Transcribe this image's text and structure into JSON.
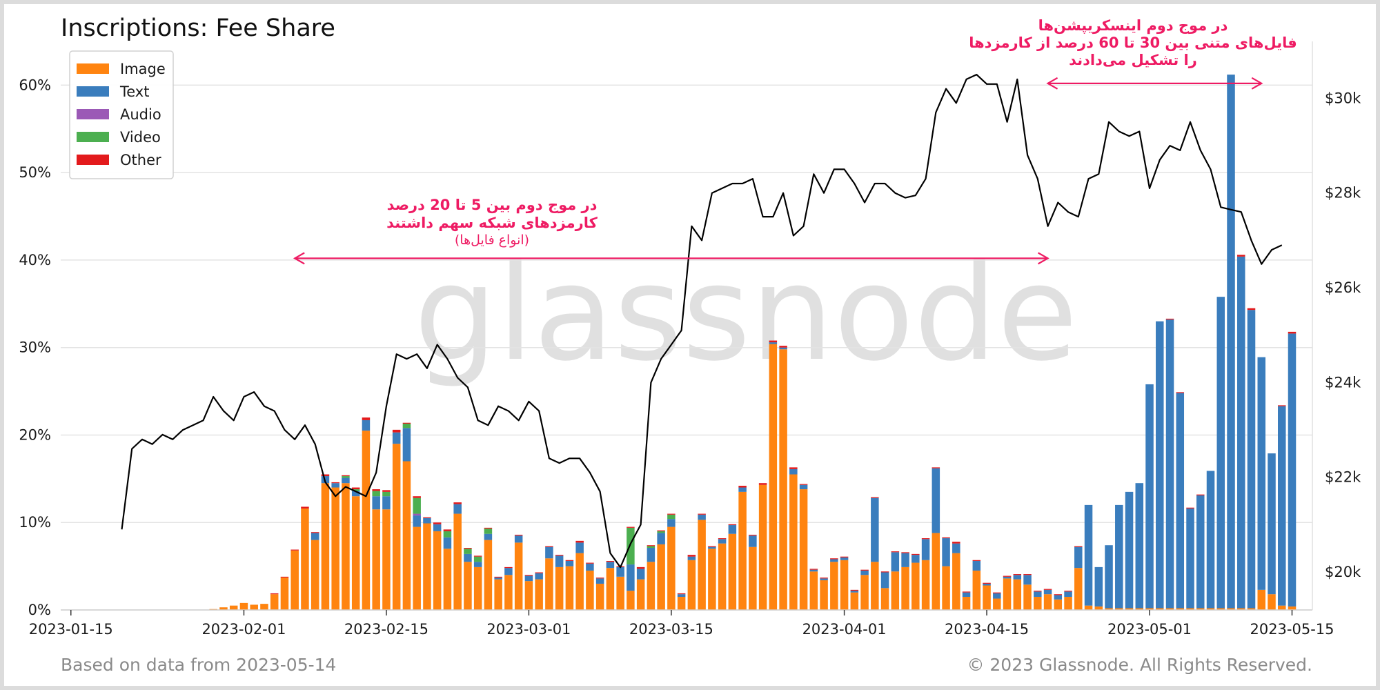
{
  "title": "Inscriptions: Fee Share",
  "footer_left": "Based on data from 2023-05-14",
  "footer_right": "© 2023 Glassnode. All Rights Reserved.",
  "watermark": "glassnode",
  "colors": {
    "Image": "#ff8410",
    "Text": "#3a7dbd",
    "Audio": "#9b59b6",
    "Video": "#4caf50",
    "Other": "#e31a1c",
    "price_line": "#000000",
    "annotation": "#ee1b63",
    "grid": "#e3e3e3"
  },
  "annotations": [
    {
      "lines": [
        "در موج دوم بین 5 تا 20 درصد",
        "کارمزدهای شبکه سهم داشتند"
      ],
      "sub": "(انواع فایل‌ها)",
      "arrow_from": "2023-02-06",
      "arrow_to": "2023-04-21",
      "arrow_y_pct": 40.2
    },
    {
      "lines": [
        "در موج دوم اینسکریپشن‌ها",
        "فایل‌های متنی بین 30 تا 60 درصد از کارمزدها",
        "را تشکیل می‌دادند"
      ],
      "sub": "",
      "arrow_from": "2023-04-21",
      "arrow_to": "2023-05-12",
      "arrow_y_pct": 60.2
    }
  ],
  "chart_data": {
    "type": "bar",
    "title": "Inscriptions: Fee Share",
    "x_axis": {
      "ticks": [
        "2023-01-15",
        "2023-02-01",
        "2023-02-15",
        "2023-03-01",
        "2023-03-15",
        "2023-04-01",
        "2023-04-15",
        "2023-05-01",
        "2023-05-15"
      ],
      "range": [
        "2023-01-14",
        "2023-05-17"
      ]
    },
    "y_left": {
      "unit": "percent",
      "range": [
        0,
        65
      ],
      "ticks": [
        "0%",
        "10%",
        "20%",
        "30%",
        "40%",
        "50%",
        "60%"
      ]
    },
    "y_right": {
      "unit": "USD",
      "range": [
        19200,
        31200
      ],
      "ticks": [
        "$20k",
        "$22k",
        "$24k",
        "$26k",
        "$28k",
        "$30k"
      ]
    },
    "legend": {
      "placement": "top-left",
      "entries": [
        "Image",
        "Text",
        "Audio",
        "Video",
        "Other"
      ]
    },
    "grid": true,
    "bars": [
      [
        "2023-01-29",
        0.1,
        0,
        0,
        0,
        0
      ],
      [
        "2023-01-30",
        0.3,
        0,
        0,
        0,
        0
      ],
      [
        "2023-01-31",
        0.5,
        0,
        0,
        0,
        0
      ],
      [
        "2023-02-01",
        0.8,
        0,
        0,
        0,
        0
      ],
      [
        "2023-02-02",
        0.6,
        0,
        0,
        0,
        0
      ],
      [
        "2023-02-03",
        0.7,
        0,
        0,
        0,
        0
      ],
      [
        "2023-02-04",
        1.8,
        0,
        0,
        0,
        0.1
      ],
      [
        "2023-02-05",
        3.7,
        0,
        0,
        0,
        0.1
      ],
      [
        "2023-02-06",
        6.8,
        0,
        0,
        0,
        0.1
      ],
      [
        "2023-02-07",
        11.6,
        0,
        0,
        0,
        0.2
      ],
      [
        "2023-02-08",
        8.0,
        0.8,
        0,
        0,
        0.1
      ],
      [
        "2023-02-09",
        14.5,
        0.8,
        0,
        0,
        0.2
      ],
      [
        "2023-02-10",
        14.0,
        0.5,
        0,
        0,
        0.1
      ],
      [
        "2023-02-11",
        14.5,
        0.6,
        0,
        0.2,
        0.1
      ],
      [
        "2023-02-12",
        13.0,
        0.6,
        0,
        0.2,
        0.2
      ],
      [
        "2023-02-13",
        20.5,
        1.2,
        0,
        0,
        0.3
      ],
      [
        "2023-02-14",
        11.5,
        1.5,
        0,
        0.6,
        0.2
      ],
      [
        "2023-02-15",
        11.5,
        1.5,
        0,
        0.5,
        0.2
      ],
      [
        "2023-02-16",
        19.0,
        1.3,
        0,
        0,
        0.3
      ],
      [
        "2023-02-17",
        17.0,
        3.8,
        0,
        0.5,
        0.1
      ],
      [
        "2023-02-18",
        9.5,
        1.3,
        0.2,
        1.8,
        0.2
      ],
      [
        "2023-02-19",
        9.9,
        0.6,
        0,
        0,
        0.1
      ],
      [
        "2023-02-20",
        9.0,
        0.8,
        0,
        0,
        0.2
      ],
      [
        "2023-02-21",
        7.0,
        1.3,
        0,
        0.7,
        0.2
      ],
      [
        "2023-02-22",
        11.0,
        1.1,
        0,
        0,
        0.2
      ],
      [
        "2023-02-23",
        5.5,
        0.9,
        0,
        0.6,
        0.1
      ],
      [
        "2023-02-24",
        4.9,
        0.6,
        0,
        0.6,
        0.1
      ],
      [
        "2023-02-25",
        8.0,
        0.7,
        0,
        0.6,
        0.1
      ],
      [
        "2023-02-26",
        3.5,
        0.2,
        0,
        0,
        0.1
      ],
      [
        "2023-02-27",
        4.0,
        0.8,
        0,
        0,
        0.1
      ],
      [
        "2023-02-28",
        7.7,
        0.8,
        0,
        0,
        0.1
      ],
      [
        "2023-03-01",
        3.3,
        0.6,
        0,
        0,
        0.1
      ],
      [
        "2023-03-02",
        3.5,
        0.7,
        0,
        0,
        0.1
      ],
      [
        "2023-03-03",
        5.9,
        1.3,
        0,
        0,
        0.1
      ],
      [
        "2023-03-04",
        4.9,
        1.3,
        0,
        0,
        0.1
      ],
      [
        "2023-03-05",
        5.0,
        0.6,
        0,
        0,
        0.1
      ],
      [
        "2023-03-06",
        6.5,
        1.2,
        0,
        0,
        0.2
      ],
      [
        "2023-03-07",
        4.5,
        0.8,
        0,
        0,
        0.1
      ],
      [
        "2023-03-08",
        3.0,
        0.6,
        0,
        0,
        0.1
      ],
      [
        "2023-03-09",
        4.8,
        0.7,
        0,
        0,
        0.1
      ],
      [
        "2023-03-10",
        3.8,
        1.1,
        0,
        0,
        0.1
      ],
      [
        "2023-03-11",
        2.2,
        3.0,
        0,
        4.2,
        0.1
      ],
      [
        "2023-03-12",
        3.5,
        1.2,
        0,
        0,
        0.2
      ],
      [
        "2023-03-13",
        5.5,
        1.6,
        0,
        0.2,
        0.1
      ],
      [
        "2023-03-14",
        7.5,
        1.3,
        0,
        0.2,
        0.1
      ],
      [
        "2023-03-15",
        9.5,
        0.9,
        0,
        0.5,
        0.1
      ],
      [
        "2023-03-16",
        1.5,
        0.3,
        0,
        0,
        0.1
      ],
      [
        "2023-03-17",
        5.7,
        0.4,
        0,
        0,
        0.2
      ],
      [
        "2023-03-18",
        10.3,
        0.6,
        0,
        0,
        0.1
      ],
      [
        "2023-03-19",
        7.0,
        0.2,
        0,
        0,
        0.1
      ],
      [
        "2023-03-20",
        7.6,
        0.5,
        0,
        0,
        0.1
      ],
      [
        "2023-03-21",
        8.7,
        1.0,
        0,
        0,
        0.1
      ],
      [
        "2023-03-22",
        13.5,
        0.5,
        0,
        0,
        0.2
      ],
      [
        "2023-03-23",
        7.2,
        1.3,
        0,
        0,
        0.1
      ],
      [
        "2023-03-24",
        14.3,
        0,
        0,
        0,
        0.2
      ],
      [
        "2023-03-25",
        30.4,
        0.2,
        0,
        0,
        0.2
      ],
      [
        "2023-03-26",
        29.8,
        0.2,
        0,
        0,
        0.2
      ],
      [
        "2023-03-27",
        15.5,
        0.6,
        0,
        0,
        0.2
      ],
      [
        "2023-03-28",
        13.8,
        0.5,
        0,
        0,
        0.1
      ],
      [
        "2023-03-29",
        4.4,
        0.2,
        0,
        0,
        0.1
      ],
      [
        "2023-03-30",
        3.4,
        0.2,
        0,
        0,
        0.1
      ],
      [
        "2023-03-31",
        5.5,
        0.3,
        0,
        0,
        0.1
      ],
      [
        "2023-04-01",
        5.7,
        0.3,
        0,
        0,
        0.1
      ],
      [
        "2023-04-02",
        2.0,
        0.2,
        0,
        0,
        0.1
      ],
      [
        "2023-04-03",
        4.0,
        0.5,
        0,
        0,
        0.1
      ],
      [
        "2023-04-04",
        5.5,
        7.3,
        0,
        0,
        0.1
      ],
      [
        "2023-04-05",
        2.5,
        1.8,
        0,
        0,
        0.1
      ],
      [
        "2023-04-06",
        4.4,
        2.2,
        0,
        0,
        0.1
      ],
      [
        "2023-04-07",
        4.9,
        1.6,
        0,
        0,
        0.1
      ],
      [
        "2023-04-08",
        5.4,
        0.9,
        0,
        0,
        0.1
      ],
      [
        "2023-04-09",
        5.7,
        2.4,
        0,
        0,
        0.1
      ],
      [
        "2023-04-10",
        8.8,
        7.4,
        0,
        0,
        0.1
      ],
      [
        "2023-04-11",
        5.0,
        3.2,
        0,
        0,
        0.1
      ],
      [
        "2023-04-12",
        6.5,
        1.1,
        0,
        0,
        0.2
      ],
      [
        "2023-04-13",
        1.5,
        0.5,
        0,
        0,
        0.1
      ],
      [
        "2023-04-14",
        4.5,
        1.1,
        0,
        0,
        0.1
      ],
      [
        "2023-04-15",
        2.8,
        0.2,
        0,
        0,
        0.1
      ],
      [
        "2023-04-16",
        1.3,
        0.6,
        0,
        0,
        0.1
      ],
      [
        "2023-04-17",
        3.6,
        0.2,
        0,
        0,
        0.1
      ],
      [
        "2023-04-18",
        3.5,
        0.5,
        0,
        0,
        0.1
      ],
      [
        "2023-04-19",
        2.9,
        1.1,
        0,
        0,
        0.1
      ],
      [
        "2023-04-20",
        1.5,
        0.6,
        0,
        0,
        0.1
      ],
      [
        "2023-04-21",
        1.8,
        0.5,
        0,
        0,
        0.1
      ],
      [
        "2023-04-22",
        1.2,
        0.5,
        0,
        0,
        0.1
      ],
      [
        "2023-04-23",
        1.5,
        0.6,
        0,
        0,
        0.1
      ],
      [
        "2023-04-24",
        4.8,
        2.4,
        0,
        0,
        0.1
      ],
      [
        "2023-04-25",
        0.5,
        11.5,
        0,
        0,
        0
      ],
      [
        "2023-04-26",
        0.4,
        4.5,
        0,
        0,
        0
      ],
      [
        "2023-04-27",
        0.2,
        7.2,
        0,
        0,
        0
      ],
      [
        "2023-04-28",
        0.2,
        11.8,
        0,
        0,
        0
      ],
      [
        "2023-04-29",
        0.2,
        13.3,
        0,
        0,
        0
      ],
      [
        "2023-04-30",
        0.2,
        14.3,
        0,
        0,
        0
      ],
      [
        "2023-05-01",
        0.2,
        25.6,
        0,
        0,
        0
      ],
      [
        "2023-05-02",
        0.2,
        32.8,
        0,
        0,
        0
      ],
      [
        "2023-05-03",
        0.2,
        33.0,
        0,
        0,
        0.1
      ],
      [
        "2023-05-04",
        0.2,
        24.6,
        0,
        0,
        0.1
      ],
      [
        "2023-05-05",
        0.2,
        11.4,
        0,
        0,
        0.1
      ],
      [
        "2023-05-06",
        0.2,
        12.9,
        0,
        0,
        0.1
      ],
      [
        "2023-05-07",
        0.2,
        15.7,
        0,
        0,
        0
      ],
      [
        "2023-05-08",
        0.2,
        35.6,
        0,
        0,
        0
      ],
      [
        "2023-05-09",
        0.2,
        61.0,
        0,
        0,
        0
      ],
      [
        "2023-05-10",
        0.2,
        40.2,
        0,
        0,
        0.2
      ],
      [
        "2023-05-11",
        0.2,
        34.1,
        0,
        0,
        0.2
      ],
      [
        "2023-05-12",
        2.3,
        26.6,
        0,
        0,
        0
      ],
      [
        "2023-05-13",
        1.8,
        16.1,
        0,
        0,
        0
      ],
      [
        "2023-05-14",
        0.5,
        22.8,
        0,
        0,
        0.1
      ],
      [
        "2023-05-15",
        0.4,
        31.2,
        0,
        0,
        0.2
      ]
    ],
    "bar_fields": [
      "date",
      "Image",
      "Text",
      "Audio",
      "Video",
      "Other"
    ],
    "price_series": {
      "axis": "right",
      "points": [
        [
          "2023-01-20",
          20900
        ],
        [
          "2023-01-21",
          22600
        ],
        [
          "2023-01-22",
          22800
        ],
        [
          "2023-01-23",
          22700
        ],
        [
          "2023-01-24",
          22900
        ],
        [
          "2023-01-25",
          22800
        ],
        [
          "2023-01-26",
          23000
        ],
        [
          "2023-01-27",
          23100
        ],
        [
          "2023-01-28",
          23200
        ],
        [
          "2023-01-29",
          23700
        ],
        [
          "2023-01-30",
          23400
        ],
        [
          "2023-01-31",
          23200
        ],
        [
          "2023-02-01",
          23700
        ],
        [
          "2023-02-02",
          23800
        ],
        [
          "2023-02-03",
          23500
        ],
        [
          "2023-02-04",
          23400
        ],
        [
          "2023-02-05",
          23000
        ],
        [
          "2023-02-06",
          22800
        ],
        [
          "2023-02-07",
          23100
        ],
        [
          "2023-02-08",
          22700
        ],
        [
          "2023-02-09",
          21900
        ],
        [
          "2023-02-10",
          21600
        ],
        [
          "2023-02-11",
          21800
        ],
        [
          "2023-02-12",
          21700
        ],
        [
          "2023-02-13",
          21600
        ],
        [
          "2023-02-14",
          22100
        ],
        [
          "2023-02-15",
          23500
        ],
        [
          "2023-02-16",
          24600
        ],
        [
          "2023-02-17",
          24500
        ],
        [
          "2023-02-18",
          24600
        ],
        [
          "2023-02-19",
          24300
        ],
        [
          "2023-02-20",
          24800
        ],
        [
          "2023-02-21",
          24500
        ],
        [
          "2023-02-22",
          24100
        ],
        [
          "2023-02-23",
          23900
        ],
        [
          "2023-02-24",
          23200
        ],
        [
          "2023-02-25",
          23100
        ],
        [
          "2023-02-26",
          23500
        ],
        [
          "2023-02-27",
          23400
        ],
        [
          "2023-02-28",
          23200
        ],
        [
          "2023-03-01",
          23600
        ],
        [
          "2023-03-02",
          23400
        ],
        [
          "2023-03-03",
          22400
        ],
        [
          "2023-03-04",
          22300
        ],
        [
          "2023-03-05",
          22400
        ],
        [
          "2023-03-06",
          22400
        ],
        [
          "2023-03-07",
          22100
        ],
        [
          "2023-03-08",
          21700
        ],
        [
          "2023-03-09",
          20400
        ],
        [
          "2023-03-10",
          20100
        ],
        [
          "2023-03-11",
          20600
        ],
        [
          "2023-03-12",
          21000
        ],
        [
          "2023-03-13",
          24000
        ],
        [
          "2023-03-14",
          24500
        ],
        [
          "2023-03-15",
          24800
        ],
        [
          "2023-03-16",
          25100
        ],
        [
          "2023-03-17",
          27300
        ],
        [
          "2023-03-18",
          27000
        ],
        [
          "2023-03-19",
          28000
        ],
        [
          "2023-03-20",
          28100
        ],
        [
          "2023-03-21",
          28200
        ],
        [
          "2023-03-22",
          28200
        ],
        [
          "2023-03-23",
          28300
        ],
        [
          "2023-03-24",
          27500
        ],
        [
          "2023-03-25",
          27500
        ],
        [
          "2023-03-26",
          28000
        ],
        [
          "2023-03-27",
          27100
        ],
        [
          "2023-03-28",
          27300
        ],
        [
          "2023-03-29",
          28400
        ],
        [
          "2023-03-30",
          28000
        ],
        [
          "2023-03-31",
          28500
        ],
        [
          "2023-04-01",
          28500
        ],
        [
          "2023-04-02",
          28200
        ],
        [
          "2023-04-03",
          27800
        ],
        [
          "2023-04-04",
          28200
        ],
        [
          "2023-04-05",
          28200
        ],
        [
          "2023-04-06",
          28000
        ],
        [
          "2023-04-07",
          27900
        ],
        [
          "2023-04-08",
          27950
        ],
        [
          "2023-04-09",
          28300
        ],
        [
          "2023-04-10",
          29700
        ],
        [
          "2023-04-11",
          30200
        ],
        [
          "2023-04-12",
          29900
        ],
        [
          "2023-04-13",
          30400
        ],
        [
          "2023-04-14",
          30500
        ],
        [
          "2023-04-15",
          30300
        ],
        [
          "2023-04-16",
          30300
        ],
        [
          "2023-04-17",
          29500
        ],
        [
          "2023-04-18",
          30400
        ],
        [
          "2023-04-19",
          28800
        ],
        [
          "2023-04-20",
          28300
        ],
        [
          "2023-04-21",
          27300
        ],
        [
          "2023-04-22",
          27800
        ],
        [
          "2023-04-23",
          27600
        ],
        [
          "2023-04-24",
          27500
        ],
        [
          "2023-04-25",
          28300
        ],
        [
          "2023-04-26",
          28400
        ],
        [
          "2023-04-27",
          29500
        ],
        [
          "2023-04-28",
          29300
        ],
        [
          "2023-04-29",
          29200
        ],
        [
          "2023-04-30",
          29300
        ],
        [
          "2023-05-01",
          28100
        ],
        [
          "2023-05-02",
          28700
        ],
        [
          "2023-05-03",
          29000
        ],
        [
          "2023-05-04",
          28900
        ],
        [
          "2023-05-05",
          29500
        ],
        [
          "2023-05-06",
          28900
        ],
        [
          "2023-05-07",
          28500
        ],
        [
          "2023-05-08",
          27700
        ],
        [
          "2023-05-09",
          27650
        ],
        [
          "2023-05-10",
          27600
        ],
        [
          "2023-05-11",
          27000
        ],
        [
          "2023-05-12",
          26500
        ],
        [
          "2023-05-13",
          26800
        ],
        [
          "2023-05-14",
          26900
        ]
      ]
    }
  }
}
